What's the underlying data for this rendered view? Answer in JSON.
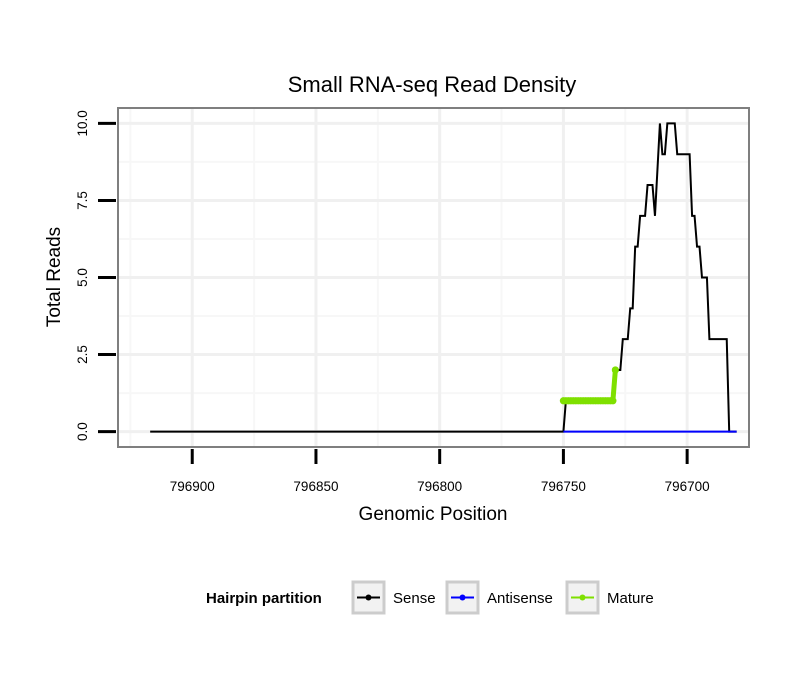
{
  "chart_data": {
    "type": "line",
    "title": "Small RNA-seq Read Density",
    "xlabel": "Genomic Position",
    "ylabel": "Total Reads",
    "x_reversed": true,
    "xlim": [
      796930,
      796675
    ],
    "ylim": [
      -0.5,
      10.5
    ],
    "x_ticks": [
      796900,
      796850,
      796800,
      796750,
      796700
    ],
    "x_tick_labels": [
      "796900",
      "796850",
      "796800",
      "796750",
      "796700"
    ],
    "y_ticks": [
      0,
      2.5,
      5,
      7.5,
      10
    ],
    "y_tick_labels": [
      "0.0",
      "2.5",
      "5.0",
      "7.5",
      "10.0"
    ],
    "grid": true,
    "legend": {
      "title": "Hairpin partition",
      "placement": "bottom",
      "entries": [
        {
          "name": "Sense",
          "color": "#000000"
        },
        {
          "name": "Antisense",
          "color": "#0000ff"
        },
        {
          "name": "Mature",
          "color": "#7fe000"
        }
      ]
    },
    "series": [
      {
        "name": "Sense",
        "color": "#000000",
        "x": [
          796917,
          796750,
          796749,
          796730,
          796729,
          796727,
          796726,
          796724,
          796723,
          796722,
          796721,
          796720,
          796719,
          796717,
          796716,
          796714,
          796713,
          796711,
          796710,
          796709,
          796708,
          796707,
          796706,
          796705,
          796704,
          796702,
          796701,
          796699,
          796698,
          796697,
          796696,
          796695,
          796694,
          796692,
          796691,
          796689,
          796688,
          796686,
          796685,
          796684,
          796683,
          796681,
          796680
        ],
        "values": [
          0,
          0,
          1,
          1,
          2,
          2,
          3,
          3,
          4,
          4,
          6,
          6,
          7,
          7,
          8,
          8,
          7,
          10,
          9,
          9,
          10,
          10,
          10,
          10,
          9,
          9,
          9,
          9,
          7,
          7,
          6,
          6,
          5,
          5,
          3,
          3,
          3,
          3,
          3,
          3,
          0,
          0,
          0
        ]
      },
      {
        "name": "Antisense",
        "color": "#0000ff",
        "x": [
          796750,
          796680
        ],
        "values": [
          0,
          0
        ]
      },
      {
        "name": "Mature",
        "color": "#7fe000",
        "x": [
          796750,
          796749,
          796748,
          796747,
          796746,
          796745,
          796744,
          796743,
          796742,
          796741,
          796740,
          796739,
          796738,
          796737,
          796736,
          796735,
          796734,
          796733,
          796732,
          796731,
          796730,
          796729
        ],
        "values": [
          1,
          1,
          1,
          1,
          1,
          1,
          1,
          1,
          1,
          1,
          1,
          1,
          1,
          1,
          1,
          1,
          1,
          1,
          1,
          1,
          1,
          2
        ]
      }
    ]
  }
}
